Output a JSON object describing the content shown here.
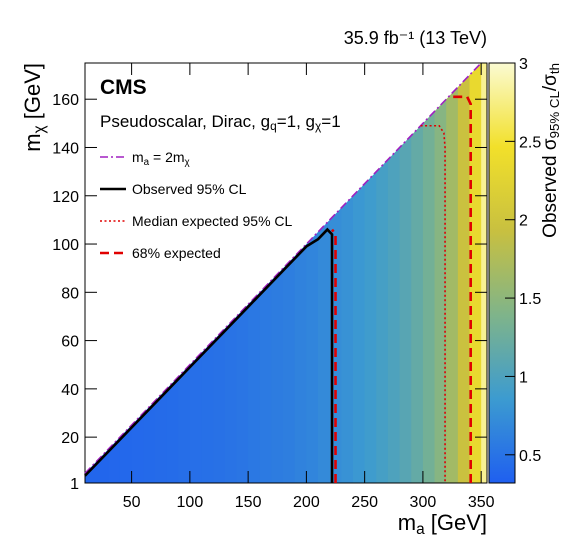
{
  "chart_data": {
    "type": "heatmap",
    "title": "35.9 fb⁻¹ (13 TeV)",
    "experiment": "CMS",
    "subtitle": [
      {
        "text": "Pseudoscalar, Dirac, g"
      },
      {
        "text": "q",
        "sub": true
      },
      {
        "text": "=1, g"
      },
      {
        "text": "χ",
        "sub": true
      },
      {
        "text": "=1"
      }
    ],
    "x_label": [
      {
        "text": "m"
      },
      {
        "text": "a",
        "sub": true
      },
      {
        "text": " [GeV]"
      }
    ],
    "y_label": [
      {
        "text": "m"
      },
      {
        "text": "χ",
        "sub": true
      },
      {
        "text": " [GeV]"
      }
    ],
    "z_label": [
      {
        "text": "Observed σ"
      },
      {
        "text": "95% CL",
        "sub": true
      },
      {
        "text": "/σ"
      },
      {
        "text": "th",
        "sub": true
      }
    ],
    "xlim": [
      10,
      355
    ],
    "ylim": [
      1,
      175
    ],
    "zlim": [
      0.32,
      3
    ],
    "xticks": [
      50,
      100,
      150,
      200,
      250,
      300,
      350
    ],
    "yticks": [
      1,
      20,
      40,
      60,
      80,
      100,
      120,
      140,
      160
    ],
    "zticks": [
      0.5,
      1,
      1.5,
      2,
      2.5,
      3
    ],
    "colormap": [
      "#1f5ff0",
      "#3c9bd0",
      "#7fb48a",
      "#c8c040",
      "#f2e02a",
      "#fbfbd2"
    ],
    "x": [
      10,
      20,
      30,
      40,
      50,
      60,
      70,
      80,
      90,
      100,
      110,
      120,
      130,
      140,
      150,
      160,
      170,
      180,
      190,
      200,
      210,
      220,
      230,
      240,
      250,
      260,
      270,
      280,
      290,
      300,
      310,
      320,
      330,
      340,
      350
    ],
    "z": [
      0.38,
      0.38,
      0.39,
      0.4,
      0.41,
      0.42,
      0.43,
      0.44,
      0.45,
      0.46,
      0.47,
      0.48,
      0.5,
      0.52,
      0.54,
      0.56,
      0.58,
      0.6,
      0.63,
      0.66,
      0.7,
      0.74,
      0.78,
      0.83,
      0.88,
      0.94,
      1.0,
      1.08,
      1.18,
      1.3,
      1.45,
      1.65,
      1.95,
      2.35,
      2.8
    ],
    "series": [
      {
        "name": [
          {
            "text": "m"
          },
          {
            "text": "a",
            "sub": true
          },
          {
            "text": " = 2m"
          },
          {
            "text": "χ",
            "sub": true
          }
        ],
        "color": "#a020c0",
        "style": "dashdot",
        "x": [
          10,
          350
        ],
        "y": [
          5,
          175
        ]
      },
      {
        "name": "Observed 95% CL",
        "color": "#000000",
        "style": "solid",
        "x": [
          10,
          50,
          100,
          150,
          200,
          210,
          218,
          222,
          222
        ],
        "y": [
          4,
          24,
          49,
          74,
          99,
          102,
          106,
          104,
          1
        ]
      },
      {
        "name": "Median expected 95% CL",
        "color": "#e00000",
        "style": "dotted",
        "x": [
          298,
          314,
          318,
          319,
          319
        ],
        "y": [
          149,
          149,
          146,
          140,
          1
        ]
      },
      {
        "name": "68% expected",
        "color": "#e00000",
        "style": "dashed",
        "x": [
          225,
          225,
          222,
          null,
          326,
          338,
          341,
          341
        ],
        "y": [
          1,
          104,
          106,
          null,
          161,
          161,
          158,
          1
        ]
      }
    ]
  }
}
